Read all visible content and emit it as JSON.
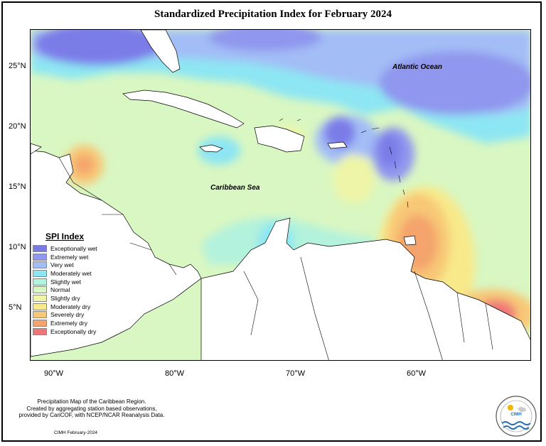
{
  "title": "Standardized Precipitation Index for February 2024",
  "lat_labels": [
    "25°N",
    "20°N",
    "15°N",
    "10°N",
    "5°N"
  ],
  "lon_labels": [
    "90°W",
    "80°W",
    "70°W",
    "60°W"
  ],
  "map_labels": {
    "atlantic": "Atlantic Ocean",
    "caribbean": "Caribbean Sea"
  },
  "legend": {
    "title": "SPI Index",
    "items": [
      {
        "label": "Exceptionally wet",
        "color": "#7b7be8"
      },
      {
        "label": "Extremely wet",
        "color": "#8f97ee"
      },
      {
        "label": "Very wet",
        "color": "#a3bdf6"
      },
      {
        "label": "Moderately wet",
        "color": "#8de6f3"
      },
      {
        "label": "Slightly wet",
        "color": "#b3f2dc"
      },
      {
        "label": "Normal",
        "color": "#d9f7c2"
      },
      {
        "label": "Slightly dry",
        "color": "#eef5a8"
      },
      {
        "label": "Moderately dry",
        "color": "#f8e98a"
      },
      {
        "label": "Severely dry",
        "color": "#f8c877"
      },
      {
        "label": "Extremely dry",
        "color": "#f4a46c"
      },
      {
        "label": "Exceptionally dry",
        "color": "#ef7777"
      }
    ]
  },
  "footer": {
    "line1": "Precipitation Map of the Caribbean Region.",
    "line2": "Created by aggregating station based observations,",
    "line3": "provided by CariCOF, with NCEP/NCAR Reanalysis Data.",
    "date": "CIMH February-2024"
  },
  "logo": {
    "text": "CIMH"
  }
}
